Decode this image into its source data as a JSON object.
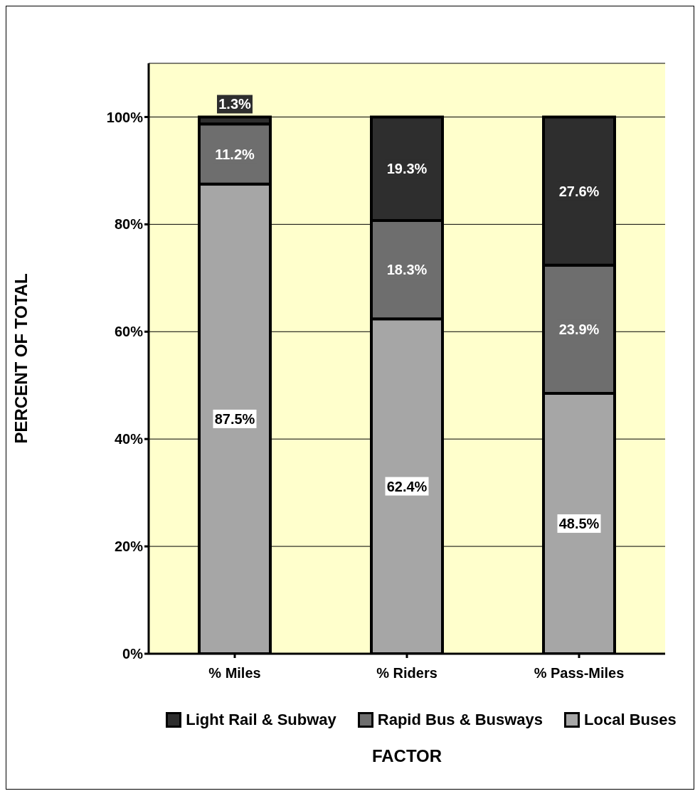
{
  "chart_data": {
    "type": "bar",
    "stacked": true,
    "xlabel": "FACTOR",
    "ylabel": "PERCENT OF TOTAL",
    "categories": [
      "% Miles",
      "% Riders",
      "% Pass-Miles"
    ],
    "series": [
      {
        "name": "Local Buses",
        "color": "#a6a6a6",
        "values": [
          87.5,
          62.4,
          48.5
        ],
        "value_labels": [
          "87.5%",
          "62.4%",
          "48.5%"
        ]
      },
      {
        "name": "Rapid Bus & Busways",
        "color": "#6e6e6e",
        "values": [
          11.2,
          18.3,
          23.9
        ],
        "value_labels": [
          "11.2%",
          "18.3%",
          "23.9%"
        ]
      },
      {
        "name": "Light Rail & Subway",
        "color": "#2e2e2e",
        "values": [
          1.3,
          19.3,
          27.6
        ],
        "value_labels": [
          "1.3%",
          "19.3%",
          "27.6%"
        ]
      }
    ],
    "ylim": [
      0,
      110
    ],
    "yticks": [
      {
        "value": 0,
        "label": "0%"
      },
      {
        "value": 20,
        "label": "20%"
      },
      {
        "value": 40,
        "label": "40%"
      },
      {
        "value": 60,
        "label": "60%"
      },
      {
        "value": 80,
        "label": "80%"
      },
      {
        "value": 100,
        "label": "100%"
      }
    ],
    "grid": "y",
    "legend": "bottom"
  }
}
